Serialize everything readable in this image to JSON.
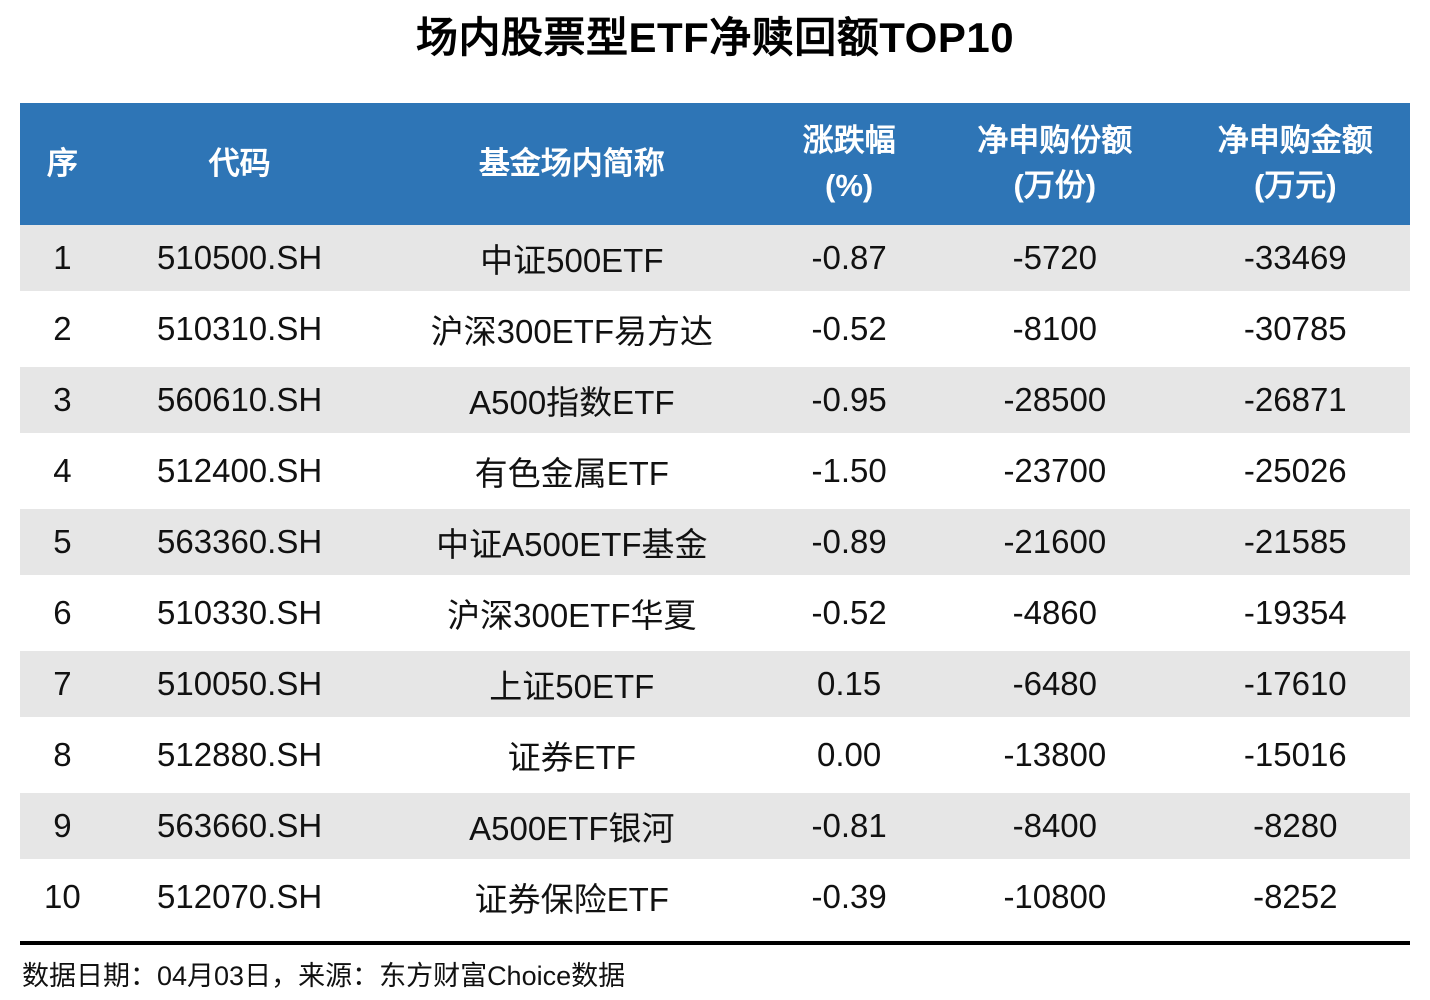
{
  "title": "场内股票型ETF净赎回额TOP10",
  "colors": {
    "header_bg": "#2E75B6",
    "stripe_bg": "#E6E6E6",
    "header_text": "#FFFFFF",
    "body_text": "#111111"
  },
  "footer": {
    "text": "数据日期：04月03日，来源：东方财富Choice数据"
  },
  "chart_data": {
    "type": "table",
    "title": "场内股票型ETF净赎回额TOP10",
    "source_note": "数据日期：04月03日，来源：东方财富Choice数据",
    "columns": [
      "序",
      "代码",
      "基金场内简称",
      "涨跌幅\n(%)",
      "净申购份额\n(万份)",
      "净申购金额\n(万元)"
    ],
    "rows": [
      [
        "1",
        "510500.SH",
        "中证500ETF",
        "-0.87",
        "-5720",
        "-33469"
      ],
      [
        "2",
        "510310.SH",
        "沪深300ETF易方达",
        "-0.52",
        "-8100",
        "-30785"
      ],
      [
        "3",
        "560610.SH",
        "A500指数ETF",
        "-0.95",
        "-28500",
        "-26871"
      ],
      [
        "4",
        "512400.SH",
        "有色金属ETF",
        "-1.50",
        "-23700",
        "-25026"
      ],
      [
        "5",
        "563360.SH",
        "中证A500ETF基金",
        "-0.89",
        "-21600",
        "-21585"
      ],
      [
        "6",
        "510330.SH",
        "沪深300ETF华夏",
        "-0.52",
        "-4860",
        "-19354"
      ],
      [
        "7",
        "510050.SH",
        "上证50ETF",
        "0.15",
        "-6480",
        "-17610"
      ],
      [
        "8",
        "512880.SH",
        "证券ETF",
        "0.00",
        "-13800",
        "-15016"
      ],
      [
        "9",
        "563660.SH",
        "A500ETF银河",
        "-0.81",
        "-8400",
        "-8280"
      ],
      [
        "10",
        "512070.SH",
        "证券保险ETF",
        "-0.39",
        "-10800",
        "-8252"
      ]
    ]
  }
}
